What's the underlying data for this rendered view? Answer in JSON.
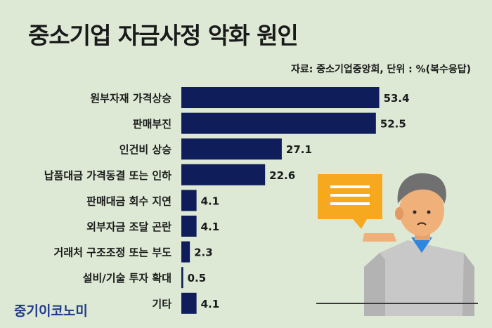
{
  "header": {
    "title": "중소기업 자금사정 악화 원인",
    "source": "자료: 중소기업중앙회, 단위 : %(복수응답)"
  },
  "brand": {
    "name": "중기이코노미"
  },
  "colors": {
    "bar": "#0f1e5a",
    "background": "#dde9d5"
  },
  "chart_data": {
    "type": "bar",
    "orientation": "horizontal",
    "categories": [
      "원부자재 가격상승",
      "판매부진",
      "인건비 상승",
      "납품대금 가격동결 또는 인하",
      "판매대금 회수 지연",
      "외부자금 조달 곤란",
      "거래처 구조조정 또는 부도",
      "설비/기술 투자 확대",
      "기타"
    ],
    "values": [
      53.4,
      52.5,
      27.1,
      22.6,
      4.1,
      4.1,
      2.3,
      0.5,
      4.1
    ],
    "value_labels": [
      "53.4",
      "52.5",
      "27.1",
      "22.6",
      "4.1",
      "4.1",
      "2.3",
      "0.5",
      "4.1"
    ],
    "xlim": [
      0,
      55
    ],
    "grid": false
  }
}
